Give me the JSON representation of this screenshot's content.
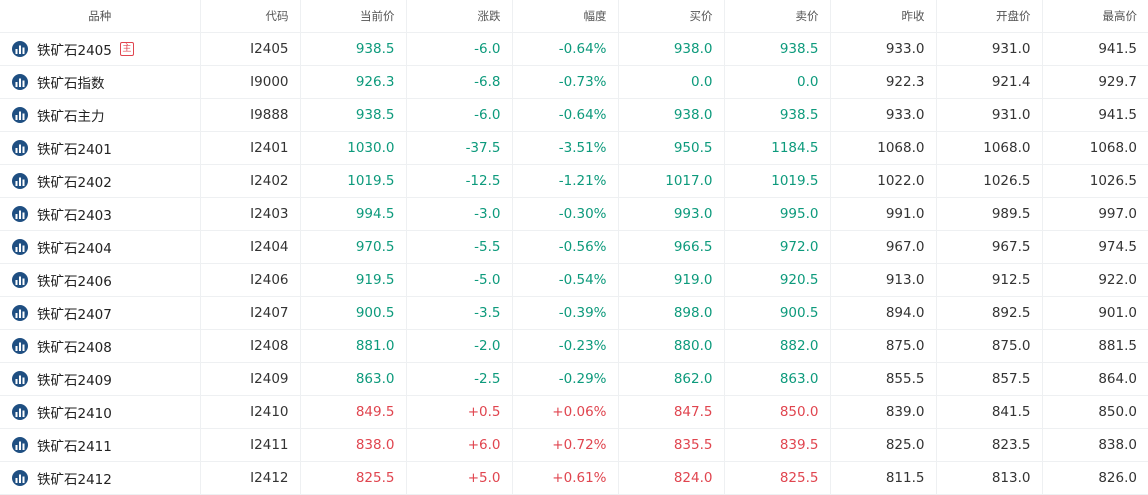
{
  "header": {
    "variety": "品种",
    "code": "代码",
    "last": "当前价",
    "change": "涨跌",
    "pct": "幅度",
    "bid": "买价",
    "ask": "卖价",
    "prev_close": "昨收",
    "open": "开盘价",
    "high": "最高价"
  },
  "icons": {
    "chart_icon": "bar-chart-circle-icon",
    "main_badge": "主"
  },
  "colors": {
    "up": "#e0454f",
    "down": "#0d9a7c",
    "icon_bg": "#1f4f82"
  },
  "rows": [
    {
      "name": "铁矿石2405",
      "badge": "主",
      "code": "I2405",
      "last": "938.5",
      "change": "-6.0",
      "pct": "-0.64%",
      "bid": "938.0",
      "ask": "938.5",
      "prev_close": "933.0",
      "open": "931.0",
      "high": "941.5",
      "dir": "down"
    },
    {
      "name": "铁矿石指数",
      "badge": "",
      "code": "I9000",
      "last": "926.3",
      "change": "-6.8",
      "pct": "-0.73%",
      "bid": "0.0",
      "ask": "0.0",
      "prev_close": "922.3",
      "open": "921.4",
      "high": "929.7",
      "dir": "down"
    },
    {
      "name": "铁矿石主力",
      "badge": "",
      "code": "I9888",
      "last": "938.5",
      "change": "-6.0",
      "pct": "-0.64%",
      "bid": "938.0",
      "ask": "938.5",
      "prev_close": "933.0",
      "open": "931.0",
      "high": "941.5",
      "dir": "down"
    },
    {
      "name": "铁矿石2401",
      "badge": "",
      "code": "I2401",
      "last": "1030.0",
      "change": "-37.5",
      "pct": "-3.51%",
      "bid": "950.5",
      "ask": "1184.5",
      "prev_close": "1068.0",
      "open": "1068.0",
      "high": "1068.0",
      "dir": "down"
    },
    {
      "name": "铁矿石2402",
      "badge": "",
      "code": "I2402",
      "last": "1019.5",
      "change": "-12.5",
      "pct": "-1.21%",
      "bid": "1017.0",
      "ask": "1019.5",
      "prev_close": "1022.0",
      "open": "1026.5",
      "high": "1026.5",
      "dir": "down"
    },
    {
      "name": "铁矿石2403",
      "badge": "",
      "code": "I2403",
      "last": "994.5",
      "change": "-3.0",
      "pct": "-0.30%",
      "bid": "993.0",
      "ask": "995.0",
      "prev_close": "991.0",
      "open": "989.5",
      "high": "997.0",
      "dir": "down"
    },
    {
      "name": "铁矿石2404",
      "badge": "",
      "code": "I2404",
      "last": "970.5",
      "change": "-5.5",
      "pct": "-0.56%",
      "bid": "966.5",
      "ask": "972.0",
      "prev_close": "967.0",
      "open": "967.5",
      "high": "974.5",
      "dir": "down"
    },
    {
      "name": "铁矿石2406",
      "badge": "",
      "code": "I2406",
      "last": "919.5",
      "change": "-5.0",
      "pct": "-0.54%",
      "bid": "919.0",
      "ask": "920.5",
      "prev_close": "913.0",
      "open": "912.5",
      "high": "922.0",
      "dir": "down"
    },
    {
      "name": "铁矿石2407",
      "badge": "",
      "code": "I2407",
      "last": "900.5",
      "change": "-3.5",
      "pct": "-0.39%",
      "bid": "898.0",
      "ask": "900.5",
      "prev_close": "894.0",
      "open": "892.5",
      "high": "901.0",
      "dir": "down"
    },
    {
      "name": "铁矿石2408",
      "badge": "",
      "code": "I2408",
      "last": "881.0",
      "change": "-2.0",
      "pct": "-0.23%",
      "bid": "880.0",
      "ask": "882.0",
      "prev_close": "875.0",
      "open": "875.0",
      "high": "881.5",
      "dir": "down"
    },
    {
      "name": "铁矿石2409",
      "badge": "",
      "code": "I2409",
      "last": "863.0",
      "change": "-2.5",
      "pct": "-0.29%",
      "bid": "862.0",
      "ask": "863.0",
      "prev_close": "855.5",
      "open": "857.5",
      "high": "864.0",
      "dir": "down"
    },
    {
      "name": "铁矿石2410",
      "badge": "",
      "code": "I2410",
      "last": "849.5",
      "change": "+0.5",
      "pct": "+0.06%",
      "bid": "847.5",
      "ask": "850.0",
      "prev_close": "839.0",
      "open": "841.5",
      "high": "850.0",
      "dir": "up"
    },
    {
      "name": "铁矿石2411",
      "badge": "",
      "code": "I2411",
      "last": "838.0",
      "change": "+6.0",
      "pct": "+0.72%",
      "bid": "835.5",
      "ask": "839.5",
      "prev_close": "825.0",
      "open": "823.5",
      "high": "838.0",
      "dir": "up"
    },
    {
      "name": "铁矿石2412",
      "badge": "",
      "code": "I2412",
      "last": "825.5",
      "change": "+5.0",
      "pct": "+0.61%",
      "bid": "824.0",
      "ask": "825.5",
      "prev_close": "811.5",
      "open": "813.0",
      "high": "826.0",
      "dir": "up"
    }
  ]
}
